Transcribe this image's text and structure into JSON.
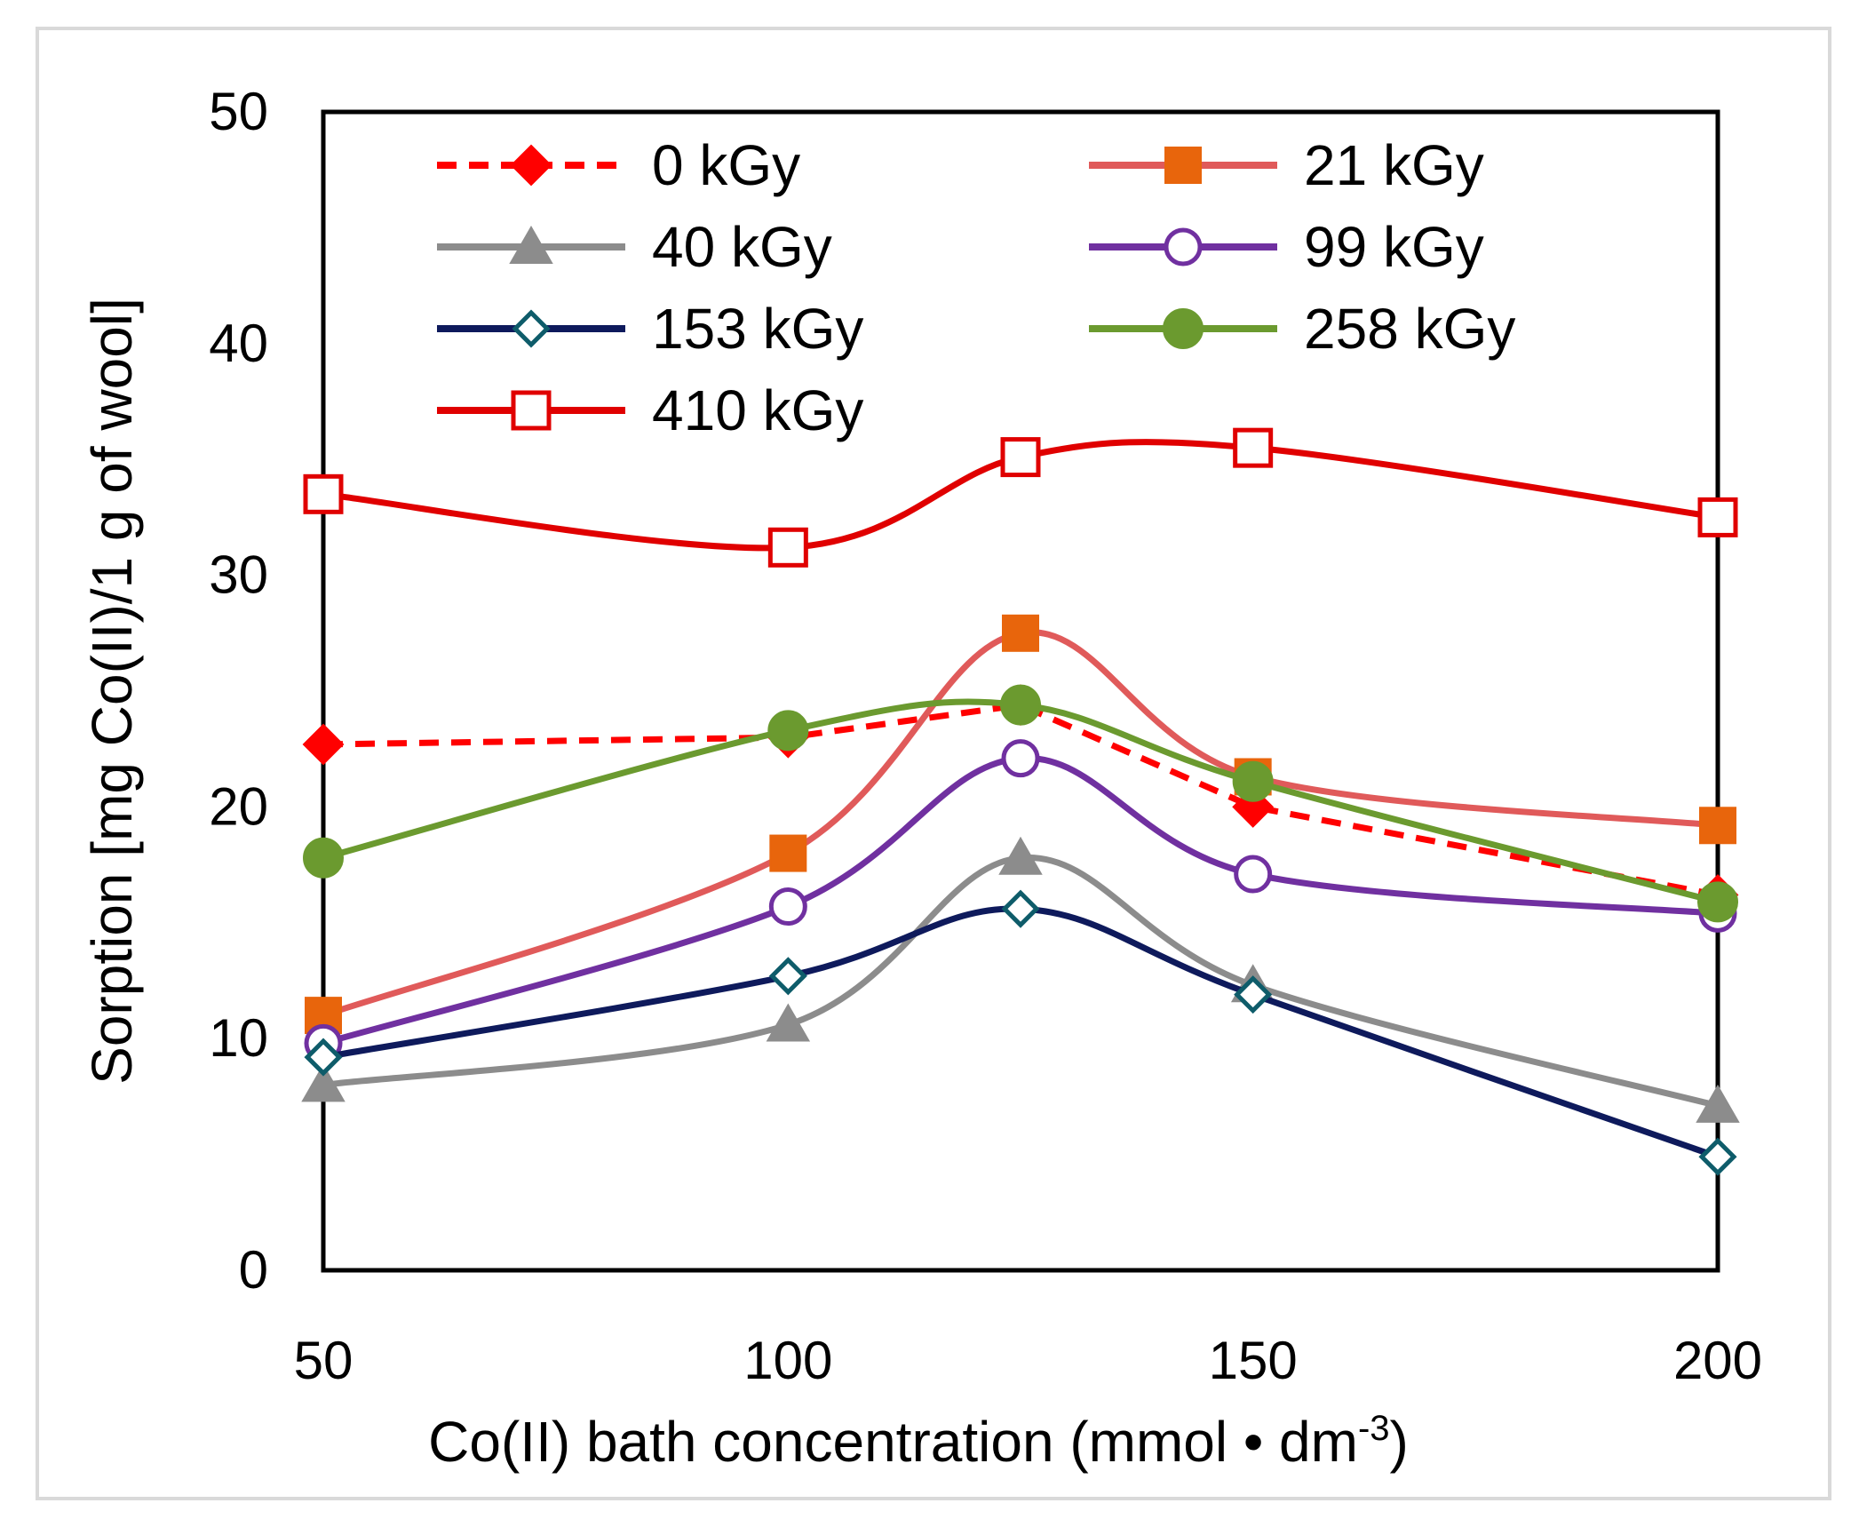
{
  "chart_data": {
    "type": "line",
    "xlabel": "Co(II) bath concentration (mmol • dm",
    "xlabel_superscript": "-3",
    "xlabel_suffix": ")",
    "ylabel": "Sorption [mg Co(II)/1 g of wool]",
    "xlim": [
      50,
      200
    ],
    "ylim": [
      0,
      50
    ],
    "x_ticks": [
      "50",
      "100",
      "150",
      "200"
    ],
    "y_ticks": [
      "0",
      "10",
      "20",
      "30",
      "40",
      "50"
    ],
    "legend_position": "top, inside plot, two columns",
    "x": [
      50,
      100,
      125,
      150,
      200
    ],
    "series": [
      {
        "name": "0 kGy",
        "values": [
          22.7,
          23.0,
          24.4,
          20.0,
          16.2
        ],
        "color": "#ff0000",
        "dash": true,
        "marker": "diamond-filled",
        "smooth": false
      },
      {
        "name": "21 kGy",
        "values": [
          11.0,
          18.0,
          27.5,
          21.3,
          19.2
        ],
        "color": "#e05a5a",
        "marker_color": "#e8650c",
        "dash": false,
        "marker": "square-filled",
        "smooth": true
      },
      {
        "name": "40 kGy",
        "values": [
          8.0,
          10.6,
          17.8,
          12.3,
          7.1
        ],
        "color": "#8c8c8c",
        "dash": false,
        "marker": "triangle-filled",
        "smooth": true
      },
      {
        "name": "99 kGy",
        "values": [
          9.8,
          15.7,
          22.1,
          17.1,
          15.4
        ],
        "color": "#7030a0",
        "dash": false,
        "marker": "circle-open",
        "smooth": true
      },
      {
        "name": "153 kGy",
        "values": [
          9.2,
          12.7,
          15.6,
          11.9,
          4.9
        ],
        "color": "#0e1a5c",
        "marker_color": "#0e5c6a",
        "dash": false,
        "marker": "diamond-open",
        "smooth": true
      },
      {
        "name": "258 kGy",
        "values": [
          17.8,
          23.3,
          24.4,
          21.1,
          15.9
        ],
        "color": "#6b9a2f",
        "dash": false,
        "marker": "circle-filled",
        "smooth": true
      },
      {
        "name": "410 kGy",
        "values": [
          33.5,
          31.2,
          35.1,
          35.5,
          32.5
        ],
        "color": "#e00000",
        "dash": false,
        "marker": "square-open",
        "smooth": true
      }
    ]
  }
}
